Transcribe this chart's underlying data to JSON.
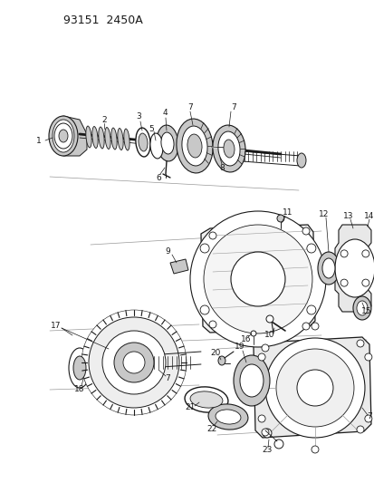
{
  "title": "93151  2450A",
  "bg_color": "#ffffff",
  "fig_width": 4.14,
  "fig_height": 5.33,
  "dpi": 100,
  "line_color": "#1a1a1a",
  "gray_light": "#c8c8c8",
  "gray_mid": "#999999",
  "gray_dark": "#555555"
}
